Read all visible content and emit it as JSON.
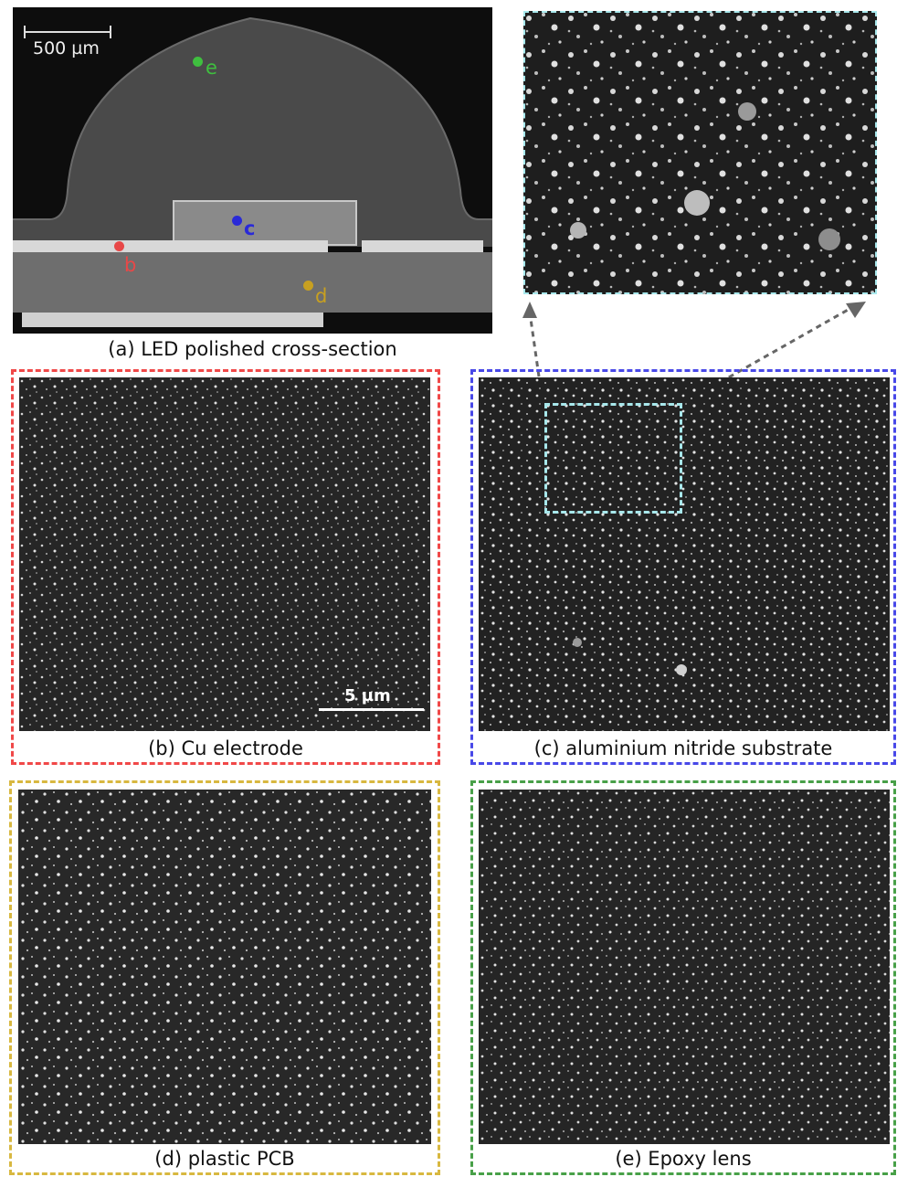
{
  "figure": {
    "panel_a": {
      "caption": "(a) LED polished cross-section",
      "scale_bar": "500 µm",
      "points": [
        {
          "label": "e",
          "color": "#3fbf3f"
        },
        {
          "label": "c",
          "color": "#2a2ad8"
        },
        {
          "label": "b",
          "color": "#e84848"
        },
        {
          "label": "d",
          "color": "#c8a020"
        }
      ]
    },
    "panel_b": {
      "caption": "(b) Cu electrode",
      "scale_bar": "5 µm",
      "frame_color": "#f04848"
    },
    "panel_c": {
      "caption": "(c) aluminium nitride substrate",
      "frame_color": "#4848e8"
    },
    "panel_d": {
      "caption": "(d) plastic PCB",
      "frame_color": "#d8b840"
    },
    "panel_e": {
      "caption": "(e) Epoxy lens",
      "frame_color": "#48a048"
    },
    "zoom_inset": {
      "frame_color": "#a8e8ec",
      "arrow_color": "#666666"
    }
  }
}
